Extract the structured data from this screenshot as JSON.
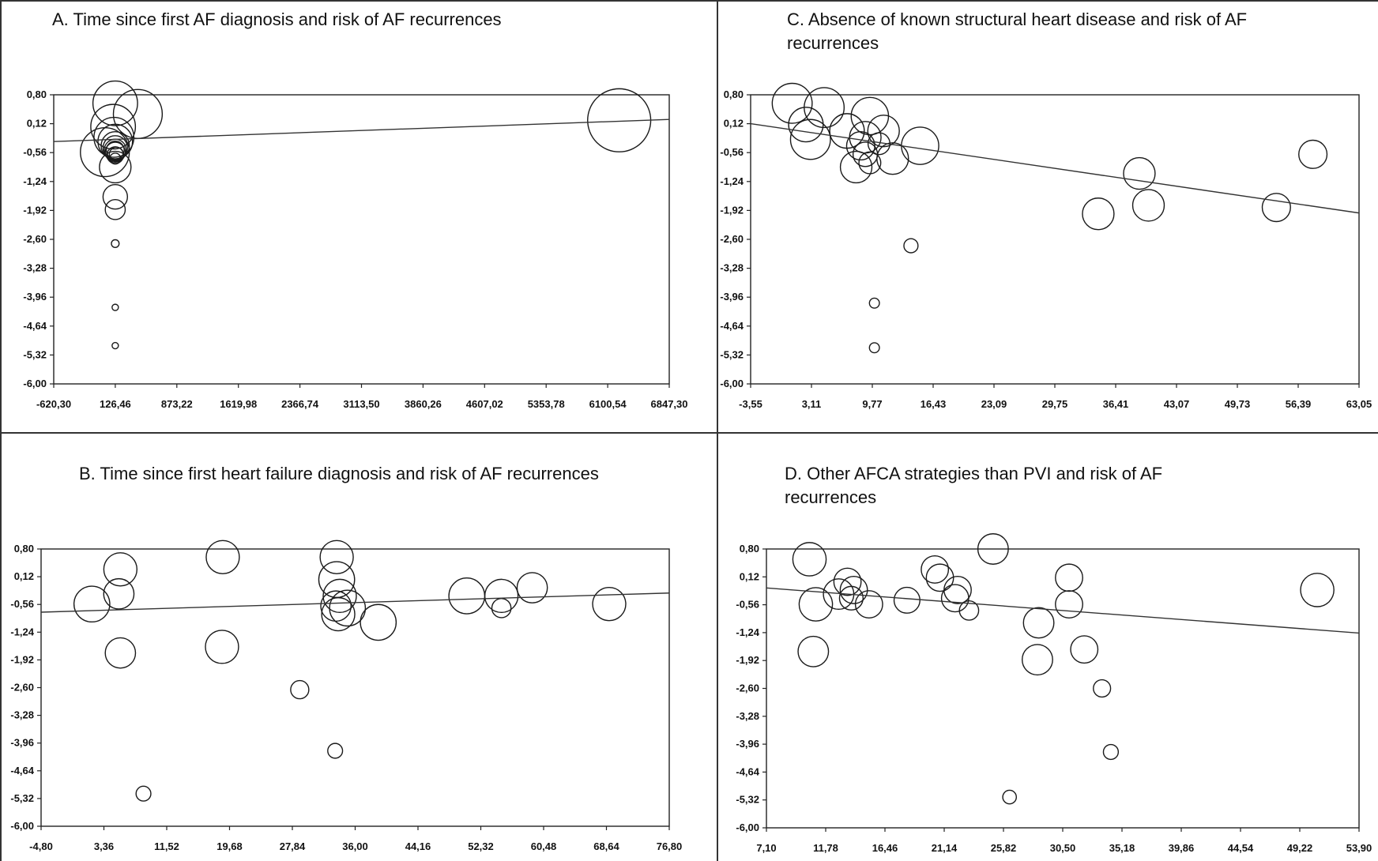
{
  "figure": {
    "panel_order": [
      "A",
      "C",
      "B",
      "D"
    ]
  },
  "chart_data": [
    {
      "id": "A",
      "type": "scatter",
      "title": "A. Time since first AF diagnosis and risk of AF recurrences",
      "xlabel": "",
      "ylabel": "",
      "xlim": [
        -620.3,
        6847.3
      ],
      "ylim": [
        -6.0,
        0.8
      ],
      "xticks": [
        "-620,30",
        "126,46",
        "873,22",
        "1619,98",
        "2366,74",
        "3113,50",
        "3860,26",
        "4607,02",
        "5353,78",
        "6100,54",
        "6847,30"
      ],
      "yticks": [
        "0,80",
        "0,12",
        "-0,56",
        "-1,24",
        "-1,92",
        "-2,60",
        "-3,28",
        "-3,96",
        "-4,64",
        "-5,32",
        "-6,00"
      ],
      "grid": false,
      "regression": {
        "x": [
          -620.3,
          6847.3
        ],
        "y": [
          -0.3,
          0.22
        ]
      },
      "points": [
        {
          "x": 126,
          "y": 0.6,
          "w": 5
        },
        {
          "x": 400,
          "y": 0.35,
          "w": 6
        },
        {
          "x": 100,
          "y": 0.05,
          "w": 5
        },
        {
          "x": 110,
          "y": -0.2,
          "w": 4
        },
        {
          "x": 126,
          "y": -0.3,
          "w": 3
        },
        {
          "x": 126,
          "y": -0.4,
          "w": 2
        },
        {
          "x": 126,
          "y": -0.45,
          "w": 1.5
        },
        {
          "x": 126,
          "y": -0.55,
          "w": 1
        },
        {
          "x": 126,
          "y": -0.62,
          "w": 0.7
        },
        {
          "x": 140,
          "y": -0.6,
          "w": 0.5
        },
        {
          "x": 126,
          "y": -0.7,
          "w": 0.3
        },
        {
          "x": 126,
          "y": -0.5,
          "w": 1.2
        },
        {
          "x": 126,
          "y": -0.5,
          "w": 0.8
        },
        {
          "x": 0,
          "y": -0.55,
          "w": 6
        },
        {
          "x": 126,
          "y": -0.9,
          "w": 2.5
        },
        {
          "x": 126,
          "y": -1.6,
          "w": 1.5
        },
        {
          "x": 126,
          "y": -1.9,
          "w": 1
        },
        {
          "x": 126,
          "y": -2.7,
          "w": 0.15
        },
        {
          "x": 126,
          "y": -4.2,
          "w": 0.08
        },
        {
          "x": 126,
          "y": -5.1,
          "w": 0.08
        },
        {
          "x": 6240,
          "y": 0.2,
          "w": 10
        }
      ]
    },
    {
      "id": "C",
      "type": "scatter",
      "title": "C. Absence of known  structural heart disease and risk of AF recurrences",
      "xlabel": "",
      "ylabel": "",
      "xlim": [
        -3.55,
        63.05
      ],
      "ylim": [
        -6.0,
        0.8
      ],
      "xticks": [
        "-3,55",
        "3,11",
        "9,77",
        "16,43",
        "23,09",
        "29,75",
        "36,41",
        "43,07",
        "49,73",
        "56,39",
        "63,05"
      ],
      "yticks": [
        "0,80",
        "0,12",
        "-0,56",
        "-1,24",
        "-1,92",
        "-2,60",
        "-3,28",
        "-3,96",
        "-4,64",
        "-5,32",
        "-6,00"
      ],
      "grid": false,
      "regression": {
        "x": [
          -3.55,
          63.05
        ],
        "y": [
          0.12,
          -1.98
        ]
      },
      "points": [
        {
          "x": 1.0,
          "y": 0.6,
          "w": 4
        },
        {
          "x": 4.5,
          "y": 0.5,
          "w": 4
        },
        {
          "x": 9.5,
          "y": 0.3,
          "w": 3.5
        },
        {
          "x": 2.5,
          "y": 0.1,
          "w": 3
        },
        {
          "x": 3.0,
          "y": -0.25,
          "w": 4
        },
        {
          "x": 7.0,
          "y": -0.05,
          "w": 3
        },
        {
          "x": 9.0,
          "y": -0.2,
          "w": 2.5
        },
        {
          "x": 11.0,
          "y": -0.05,
          "w": 2.5
        },
        {
          "x": 8.5,
          "y": -0.4,
          "w": 2
        },
        {
          "x": 9.0,
          "y": -0.6,
          "w": 1.5
        },
        {
          "x": 8.0,
          "y": -0.9,
          "w": 2.5
        },
        {
          "x": 12.0,
          "y": -0.7,
          "w": 2.5
        },
        {
          "x": 15.0,
          "y": -0.4,
          "w": 3.5
        },
        {
          "x": 9.5,
          "y": -0.8,
          "w": 1.2
        },
        {
          "x": 10.5,
          "y": -0.35,
          "w": 1.2
        },
        {
          "x": 14.0,
          "y": -2.75,
          "w": 0.5
        },
        {
          "x": 10.0,
          "y": -4.1,
          "w": 0.25
        },
        {
          "x": 10.0,
          "y": -5.15,
          "w": 0.25
        },
        {
          "x": 34.5,
          "y": -2.0,
          "w": 2.5
        },
        {
          "x": 39.0,
          "y": -1.05,
          "w": 2.5
        },
        {
          "x": 40.0,
          "y": -1.8,
          "w": 2.5
        },
        {
          "x": 54.0,
          "y": -1.85,
          "w": 2
        },
        {
          "x": 58.0,
          "y": -0.6,
          "w": 2
        }
      ]
    },
    {
      "id": "B",
      "type": "scatter",
      "title": "B. Time since first heart failure  diagnosis and risk of AF recurrences",
      "xlabel": "",
      "ylabel": "",
      "xlim": [
        -4.8,
        76.8
      ],
      "ylim": [
        -6.0,
        0.8
      ],
      "xticks": [
        "-4,80",
        "3,36",
        "11,52",
        "19,68",
        "27,84",
        "36,00",
        "44,16",
        "52,32",
        "60,48",
        "68,64",
        "76,80"
      ],
      "yticks": [
        "0,80",
        "0,12",
        "-0,56",
        "-1,24",
        "-1,92",
        "-2,60",
        "-3,28",
        "-3,96",
        "-4,64",
        "-5,32",
        "-6,00"
      ],
      "grid": false,
      "regression": {
        "x": [
          -4.8,
          76.8
        ],
        "y": [
          -0.75,
          -0.28
        ]
      },
      "points": [
        {
          "x": 5.5,
          "y": 0.3,
          "w": 3
        },
        {
          "x": 5.3,
          "y": -0.3,
          "w": 2.5
        },
        {
          "x": 1.8,
          "y": -0.55,
          "w": 3.5
        },
        {
          "x": 5.5,
          "y": -1.75,
          "w": 2.5
        },
        {
          "x": 8.5,
          "y": -5.2,
          "w": 0.6
        },
        {
          "x": 18.8,
          "y": 0.6,
          "w": 3
        },
        {
          "x": 18.7,
          "y": -1.6,
          "w": 3
        },
        {
          "x": 28.8,
          "y": -2.65,
          "w": 0.9
        },
        {
          "x": 33.6,
          "y": 0.6,
          "w": 3
        },
        {
          "x": 33.6,
          "y": 0.05,
          "w": 3.5
        },
        {
          "x": 34.0,
          "y": -0.35,
          "w": 3
        },
        {
          "x": 33.5,
          "y": -0.6,
          "w": 2.5
        },
        {
          "x": 33.8,
          "y": -0.8,
          "w": 3
        },
        {
          "x": 35.0,
          "y": -0.65,
          "w": 3.5
        },
        {
          "x": 39.0,
          "y": -1.0,
          "w": 3.5
        },
        {
          "x": 33.4,
          "y": -4.15,
          "w": 0.6
        },
        {
          "x": 50.5,
          "y": -0.35,
          "w": 3.5
        },
        {
          "x": 55.0,
          "y": -0.35,
          "w": 3
        },
        {
          "x": 55.0,
          "y": -0.65,
          "w": 1
        },
        {
          "x": 59.0,
          "y": -0.15,
          "w": 2.5
        },
        {
          "x": 69.0,
          "y": -0.55,
          "w": 3
        }
      ]
    },
    {
      "id": "D",
      "type": "scatter",
      "title": "D. Other AFCA strategies than PVI and risk of AF recurrences",
      "xlabel": "",
      "ylabel": "",
      "xlim": [
        7.1,
        53.9
      ],
      "ylim": [
        -6.0,
        0.8
      ],
      "xticks": [
        "7,10",
        "11,78",
        "16,46",
        "21,14",
        "25,82",
        "30,50",
        "35,18",
        "39,86",
        "44,54",
        "49,22",
        "53,90"
      ],
      "yticks": [
        "0,80",
        "0,12",
        "-0,56",
        "-1,24",
        "-1,92",
        "-2,60",
        "-3,28",
        "-3,96",
        "-4,64",
        "-5,32",
        "-6,00"
      ],
      "grid": false,
      "regression": {
        "x": [
          7.1,
          53.9
        ],
        "y": [
          -0.15,
          -1.25
        ]
      },
      "points": [
        {
          "x": 10.5,
          "y": 0.55,
          "w": 3
        },
        {
          "x": 11.0,
          "y": -0.55,
          "w": 3
        },
        {
          "x": 10.8,
          "y": -1.7,
          "w": 2.5
        },
        {
          "x": 12.8,
          "y": -0.3,
          "w": 2.5
        },
        {
          "x": 13.5,
          "y": 0.0,
          "w": 2
        },
        {
          "x": 14.0,
          "y": -0.2,
          "w": 2
        },
        {
          "x": 13.8,
          "y": -0.4,
          "w": 1.5
        },
        {
          "x": 15.2,
          "y": -0.55,
          "w": 2
        },
        {
          "x": 18.2,
          "y": -0.45,
          "w": 1.8
        },
        {
          "x": 20.4,
          "y": 0.3,
          "w": 2
        },
        {
          "x": 20.8,
          "y": 0.1,
          "w": 2
        },
        {
          "x": 22.2,
          "y": -0.2,
          "w": 2
        },
        {
          "x": 22.0,
          "y": -0.4,
          "w": 2
        },
        {
          "x": 23.1,
          "y": -0.7,
          "w": 1
        },
        {
          "x": 25.0,
          "y": 0.8,
          "w": 2.5
        },
        {
          "x": 26.3,
          "y": -5.25,
          "w": 0.5
        },
        {
          "x": 28.6,
          "y": -1.0,
          "w": 2.5
        },
        {
          "x": 28.5,
          "y": -1.9,
          "w": 2.5
        },
        {
          "x": 31.0,
          "y": 0.1,
          "w": 2
        },
        {
          "x": 31.0,
          "y": -0.55,
          "w": 2
        },
        {
          "x": 32.2,
          "y": -1.65,
          "w": 2
        },
        {
          "x": 33.6,
          "y": -2.6,
          "w": 0.8
        },
        {
          "x": 34.3,
          "y": -4.15,
          "w": 0.6
        },
        {
          "x": 50.6,
          "y": -0.2,
          "w": 3
        }
      ]
    }
  ]
}
